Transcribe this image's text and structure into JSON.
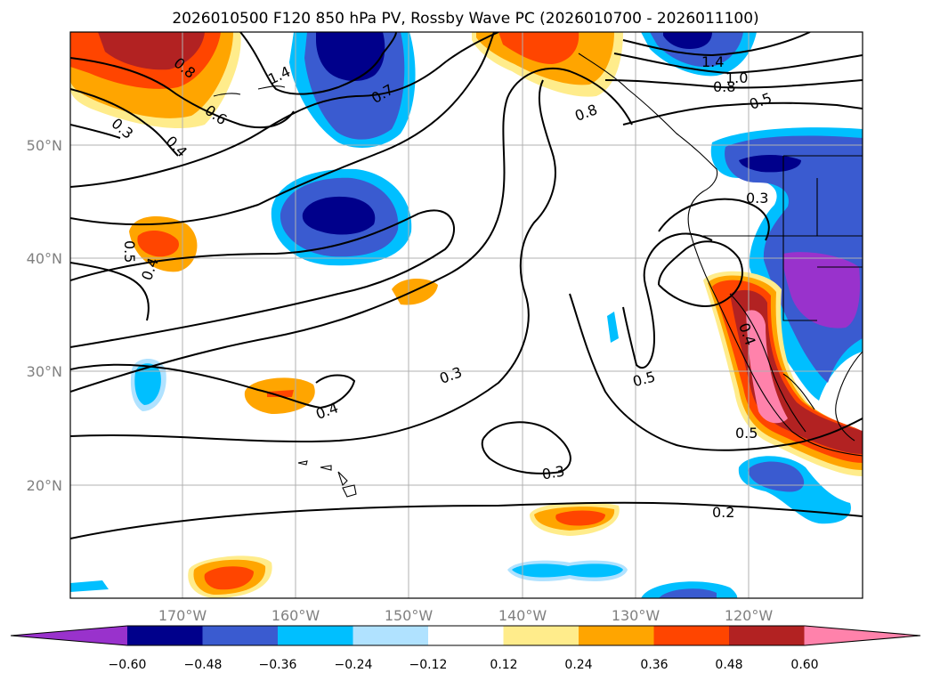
{
  "title": "2026010500 F120 850 hPa PV, Rossby Wave PC (2026010700 - 2026011100)",
  "map": {
    "lon_ticks": [
      "170°W",
      "160°W",
      "150°W",
      "140°W",
      "130°W",
      "120°W"
    ],
    "lat_ticks": [
      "50°N",
      "40°N",
      "30°N",
      "20°N"
    ]
  },
  "colorbar": {
    "ticks": [
      "−0.60",
      "−0.48",
      "−0.36",
      "−0.24",
      "−0.12",
      "0.12",
      "0.24",
      "0.36",
      "0.48",
      "0.60"
    ],
    "colors": [
      "#9932cc",
      "#00008b",
      "#3a5bd0",
      "#00bfff",
      "#b0e2ff",
      "#ffffff",
      "#ffec8b",
      "#ffa500",
      "#ff4500",
      "#b22222",
      "#ff82ab"
    ]
  },
  "contour_labels": [
    "0.8",
    "1.4",
    "0.7",
    "0.6",
    "0.4",
    "0.3",
    "0.8",
    "1.4",
    "1.0",
    "0.8",
    "0.5",
    "0.3",
    "0.5",
    "0.4",
    "0.3",
    "0.4",
    "0.5",
    "0.4",
    "0.5",
    "0.3",
    "0.2"
  ]
}
